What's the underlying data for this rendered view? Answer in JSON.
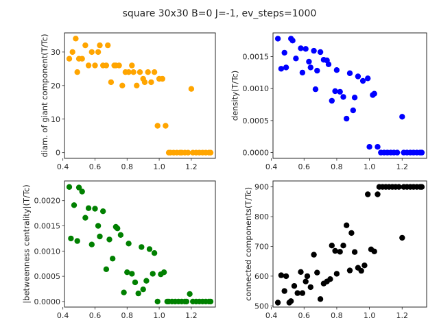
{
  "suptitle": "square 30x30  B=0 J=-1, ev_steps=1000",
  "chart_data": [
    {
      "type": "scatter",
      "id": "diam",
      "color": "#ffa500",
      "ylabel": "diam. of giant component(T/Tc)",
      "xlabel": "",
      "xlim": [
        0.41,
        1.35
      ],
      "ylim": [
        -1.7,
        35.7
      ],
      "xticks": [
        0.4,
        0.6,
        0.8,
        1.0,
        1.2
      ],
      "xtick_labels": [
        "0.4",
        "0.6",
        "0.8",
        "1.0",
        "1.2"
      ],
      "yticks": [
        0,
        10,
        20,
        30
      ],
      "ytick_labels": [
        "0",
        "10",
        "20",
        "30"
      ],
      "points": [
        [
          0.44,
          28
        ],
        [
          0.46,
          30
        ],
        [
          0.48,
          34
        ],
        [
          0.49,
          24
        ],
        [
          0.5,
          28
        ],
        [
          0.52,
          28
        ],
        [
          0.54,
          32
        ],
        [
          0.56,
          26
        ],
        [
          0.58,
          30
        ],
        [
          0.6,
          26
        ],
        [
          0.62,
          30
        ],
        [
          0.63,
          32
        ],
        [
          0.65,
          26
        ],
        [
          0.67,
          26
        ],
        [
          0.68,
          32
        ],
        [
          0.7,
          21
        ],
        [
          0.72,
          26
        ],
        [
          0.73,
          26
        ],
        [
          0.75,
          26
        ],
        [
          0.77,
          20
        ],
        [
          0.79,
          24
        ],
        [
          0.81,
          24
        ],
        [
          0.83,
          26
        ],
        [
          0.84,
          24
        ],
        [
          0.86,
          20
        ],
        [
          0.88,
          24
        ],
        [
          0.9,
          22
        ],
        [
          0.91,
          21
        ],
        [
          0.93,
          24
        ],
        [
          0.95,
          21
        ],
        [
          0.97,
          24
        ],
        [
          0.99,
          8
        ],
        [
          1.0,
          22
        ],
        [
          1.02,
          22
        ],
        [
          1.04,
          8
        ],
        [
          1.06,
          0
        ],
        [
          1.07,
          0
        ],
        [
          1.09,
          0
        ],
        [
          1.11,
          0
        ],
        [
          1.13,
          0
        ],
        [
          1.14,
          0
        ],
        [
          1.16,
          0
        ],
        [
          1.18,
          0
        ],
        [
          1.2,
          19
        ],
        [
          1.21,
          0
        ],
        [
          1.23,
          0
        ],
        [
          1.25,
          0
        ],
        [
          1.27,
          0
        ],
        [
          1.29,
          0
        ],
        [
          1.31,
          0
        ],
        [
          1.32,
          0
        ]
      ]
    },
    {
      "type": "scatter",
      "id": "density",
      "color": "#0000ff",
      "ylabel": "density(T/Tc)",
      "xlabel": "",
      "xlim": [
        0.41,
        1.35
      ],
      "ylim": [
        -9e-05,
        0.00187
      ],
      "xticks": [
        0.4,
        0.6,
        0.8,
        1.0,
        1.2
      ],
      "xtick_labels": [
        "0.4",
        "0.6",
        "0.8",
        "1.0",
        "1.2"
      ],
      "yticks": [
        0,
        0.0005,
        0.001,
        0.0015
      ],
      "ytick_labels": [
        "0.0000",
        "0.0005",
        "0.0010",
        "0.0015"
      ],
      "points": [
        [
          0.44,
          0.00178
        ],
        [
          0.46,
          0.00131
        ],
        [
          0.48,
          0.00156
        ],
        [
          0.49,
          0.00133
        ],
        [
          0.52,
          0.00178
        ],
        [
          0.53,
          0.00175
        ],
        [
          0.55,
          0.00147
        ],
        [
          0.58,
          0.00163
        ],
        [
          0.59,
          0.00125
        ],
        [
          0.61,
          0.00162
        ],
        [
          0.63,
          0.00142
        ],
        [
          0.64,
          0.00133
        ],
        [
          0.66,
          0.00159
        ],
        [
          0.67,
          0.00099
        ],
        [
          0.68,
          0.00128
        ],
        [
          0.7,
          0.00157
        ],
        [
          0.72,
          0.00145
        ],
        [
          0.74,
          0.00144
        ],
        [
          0.75,
          0.00138
        ],
        [
          0.77,
          0.00081
        ],
        [
          0.79,
          0.00096
        ],
        [
          0.8,
          0.00129
        ],
        [
          0.82,
          0.00095
        ],
        [
          0.84,
          0.00087
        ],
        [
          0.86,
          0.00053
        ],
        [
          0.88,
          0.00124
        ],
        [
          0.9,
          0.00066
        ],
        [
          0.91,
          0.00086
        ],
        [
          0.93,
          0.00119
        ],
        [
          0.96,
          0.00112
        ],
        [
          0.99,
          0.00116
        ],
        [
          1.0,
          9e-05
        ],
        [
          1.02,
          0.0009
        ],
        [
          1.03,
          0.00092
        ],
        [
          1.05,
          9e-05
        ],
        [
          1.07,
          0
        ],
        [
          1.09,
          0
        ],
        [
          1.11,
          0
        ],
        [
          1.13,
          0
        ],
        [
          1.15,
          0
        ],
        [
          1.17,
          0
        ],
        [
          1.2,
          0.00056
        ],
        [
          1.21,
          0
        ],
        [
          1.23,
          0
        ],
        [
          1.25,
          0
        ],
        [
          1.27,
          0
        ],
        [
          1.29,
          0
        ],
        [
          1.31,
          0
        ],
        [
          1.32,
          0
        ]
      ]
    },
    {
      "type": "scatter",
      "id": "betweenness",
      "color": "#008000",
      "ylabel": "|betweenness centrality|(T/Tc)",
      "xlabel": "",
      "xlim": [
        0.41,
        1.35
      ],
      "ylim": [
        -0.00011,
        0.00239
      ],
      "xticks": [
        0.4,
        0.6,
        0.8,
        1.0,
        1.2
      ],
      "xtick_labels": [
        "0.4",
        "0.6",
        "0.8",
        "1.0",
        "1.2"
      ],
      "yticks": [
        0,
        0.0005,
        0.001,
        0.0015,
        0.002
      ],
      "ytick_labels": [
        "0.0000",
        "0.0005",
        "0.0010",
        "0.0015",
        "0.0020"
      ],
      "points": [
        [
          0.44,
          0.00227
        ],
        [
          0.45,
          0.00125
        ],
        [
          0.47,
          0.00191
        ],
        [
          0.49,
          0.0012
        ],
        [
          0.5,
          0.00226
        ],
        [
          0.52,
          0.00218
        ],
        [
          0.54,
          0.00166
        ],
        [
          0.56,
          0.00185
        ],
        [
          0.58,
          0.00113
        ],
        [
          0.6,
          0.00184
        ],
        [
          0.62,
          0.0015
        ],
        [
          0.63,
          0.00129
        ],
        [
          0.65,
          0.00179
        ],
        [
          0.67,
          0.00064
        ],
        [
          0.69,
          0.00123
        ],
        [
          0.71,
          0.00085
        ],
        [
          0.73,
          0.00148
        ],
        [
          0.74,
          0.00145
        ],
        [
          0.76,
          0.00132
        ],
        [
          0.78,
          0.00018
        ],
        [
          0.8,
          0.00058
        ],
        [
          0.81,
          0.00115
        ],
        [
          0.83,
          0.00055
        ],
        [
          0.85,
          0.00038
        ],
        [
          0.87,
          0.00016
        ],
        [
          0.89,
          0.00108
        ],
        [
          0.9,
          0.00024
        ],
        [
          0.92,
          0.00041
        ],
        [
          0.94,
          0.00104
        ],
        [
          0.96,
          0.00055
        ],
        [
          0.97,
          0.00096
        ],
        [
          0.99,
          0
        ],
        [
          1.01,
          0.00054
        ],
        [
          1.03,
          0.00058
        ],
        [
          1.05,
          0
        ],
        [
          1.06,
          0
        ],
        [
          1.08,
          0
        ],
        [
          1.1,
          0
        ],
        [
          1.12,
          0
        ],
        [
          1.14,
          0
        ],
        [
          1.16,
          0
        ],
        [
          1.17,
          0
        ],
        [
          1.19,
          0.00015
        ],
        [
          1.21,
          0
        ],
        [
          1.23,
          0
        ],
        [
          1.25,
          0
        ],
        [
          1.27,
          0
        ],
        [
          1.29,
          0
        ],
        [
          1.31,
          0
        ],
        [
          1.32,
          0
        ]
      ]
    },
    {
      "type": "scatter",
      "id": "components",
      "color": "#000000",
      "ylabel": "connected components(T/Tc)",
      "xlabel": "",
      "xlim": [
        0.41,
        1.35
      ],
      "ylim": [
        496,
        920
      ],
      "xticks": [
        0.4,
        0.6,
        0.8,
        1.0,
        1.2
      ],
      "xtick_labels": [
        "0.4",
        "0.6",
        "0.8",
        "1.0",
        "1.2"
      ],
      "yticks": [
        500,
        600,
        700,
        800,
        900
      ],
      "ytick_labels": [
        "500",
        "600",
        "700",
        "800",
        "900"
      ],
      "points": [
        [
          0.44,
          511
        ],
        [
          0.46,
          603
        ],
        [
          0.48,
          550
        ],
        [
          0.49,
          600
        ],
        [
          0.51,
          511
        ],
        [
          0.52,
          516
        ],
        [
          0.54,
          567
        ],
        [
          0.56,
          543
        ],
        [
          0.58,
          614
        ],
        [
          0.59,
          543
        ],
        [
          0.61,
          582
        ],
        [
          0.62,
          600
        ],
        [
          0.64,
          563
        ],
        [
          0.66,
          672
        ],
        [
          0.68,
          612
        ],
        [
          0.7,
          523
        ],
        [
          0.72,
          575
        ],
        [
          0.74,
          582
        ],
        [
          0.76,
          590
        ],
        [
          0.77,
          703
        ],
        [
          0.79,
          685
        ],
        [
          0.8,
          608
        ],
        [
          0.82,
          682
        ],
        [
          0.84,
          703
        ],
        [
          0.86,
          771
        ],
        [
          0.88,
          619
        ],
        [
          0.89,
          745
        ],
        [
          0.91,
          681
        ],
        [
          0.93,
          628
        ],
        [
          0.95,
          618
        ],
        [
          0.97,
          636
        ],
        [
          0.99,
          875
        ],
        [
          1.01,
          690
        ],
        [
          1.03,
          683
        ],
        [
          1.05,
          875
        ],
        [
          1.06,
          900
        ],
        [
          1.08,
          900
        ],
        [
          1.1,
          900
        ],
        [
          1.12,
          900
        ],
        [
          1.14,
          900
        ],
        [
          1.16,
          900
        ],
        [
          1.18,
          900
        ],
        [
          1.2,
          729
        ],
        [
          1.21,
          900
        ],
        [
          1.23,
          900
        ],
        [
          1.25,
          900
        ],
        [
          1.27,
          900
        ],
        [
          1.29,
          900
        ],
        [
          1.31,
          900
        ],
        [
          1.32,
          900
        ]
      ]
    }
  ]
}
